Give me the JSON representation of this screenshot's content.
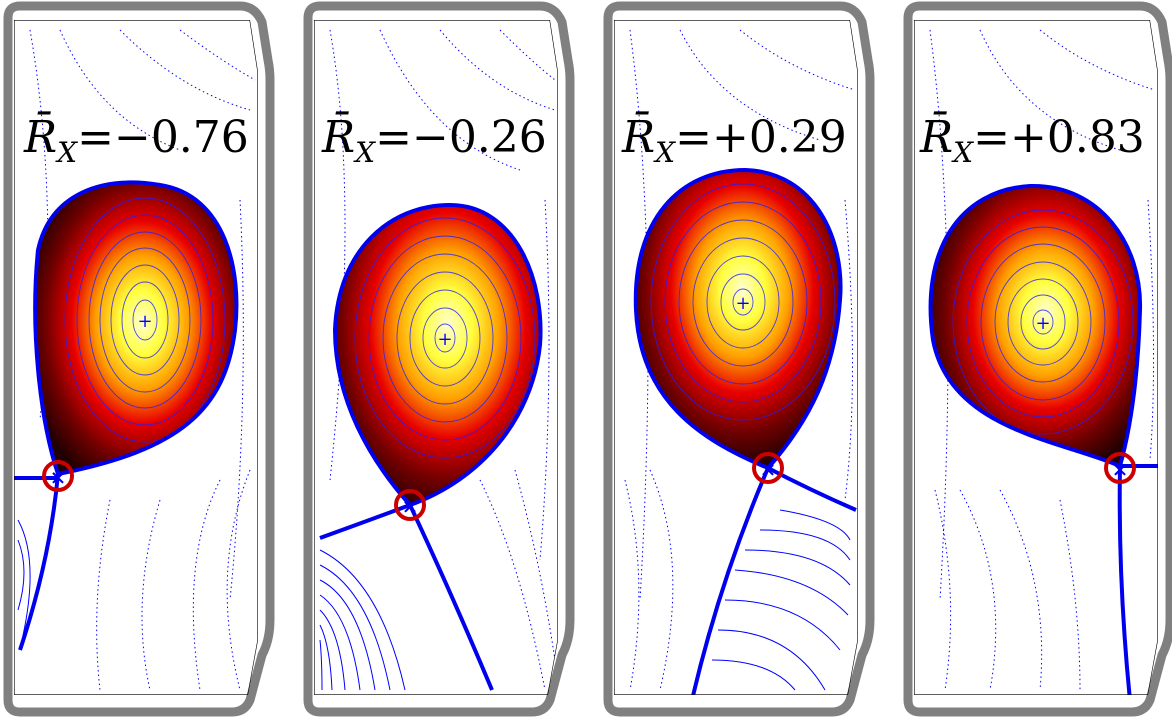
{
  "figure": {
    "panels": [
      {
        "label_symbol": "R̄",
        "label_subscript": "X",
        "label_value": "=−0.76"
      },
      {
        "label_symbol": "R̄",
        "label_subscript": "X",
        "label_value": "=−0.26"
      },
      {
        "label_symbol": "R̄",
        "label_subscript": "X",
        "label_value": "=+0.29"
      },
      {
        "label_symbol": "R̄",
        "label_subscript": "X",
        "label_value": "=+0.83"
      }
    ],
    "colors": {
      "vessel_wall": "#808080",
      "limiter": "#000000",
      "separatrix": "#0000ee",
      "flux_contour": "#0000ff",
      "xpoint_marker": "#cc0000",
      "plasma_core": "#ffffc0",
      "plasma_edge": "#200000"
    }
  }
}
